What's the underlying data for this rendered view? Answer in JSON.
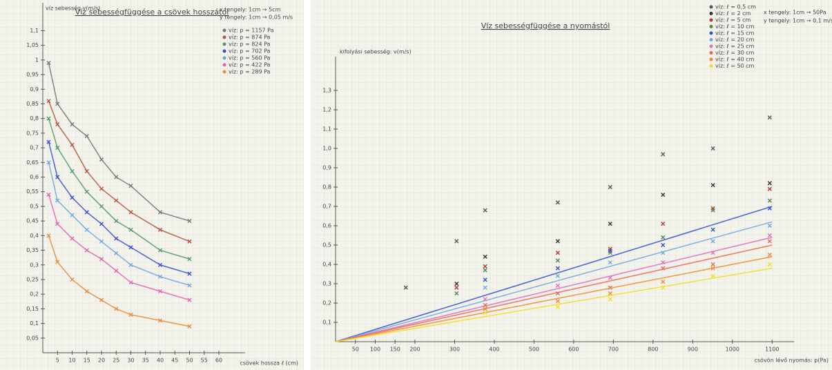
{
  "chart_data": [
    {
      "type": "line",
      "title": "Víz sebességfüggése a csövek hosszától",
      "x_label": "csövek hossza ℓ (cm)",
      "y_label": "víz sebesség v(m/s)",
      "annotations": [
        "x tengely: 1cm → 5cm",
        "y tengely: 1cm → 0,05 m/s"
      ],
      "xlim": [
        0,
        68
      ],
      "ylim": [
        0,
        1.2
      ],
      "xticks": [
        5,
        10,
        15,
        20,
        25,
        30,
        35,
        40,
        45,
        50,
        55,
        60
      ],
      "yticks": [
        {
          "value": 0.05,
          "label": "0,05"
        },
        {
          "value": 0.1,
          "label": "0,1"
        },
        {
          "value": 0.15,
          "label": "0,15"
        },
        {
          "value": 0.2,
          "label": "0,2"
        },
        {
          "value": 0.25,
          "label": "0,25"
        },
        {
          "value": 0.3,
          "label": "0,3"
        },
        {
          "value": 0.35,
          "label": "0,35"
        },
        {
          "value": 0.4,
          "label": "0,4"
        },
        {
          "value": 0.45,
          "label": "0,45"
        },
        {
          "value": 0.5,
          "label": "0,5"
        },
        {
          "value": 0.55,
          "label": "0,55"
        },
        {
          "value": 0.6,
          "label": "0,6"
        },
        {
          "value": 0.65,
          "label": "0,65"
        },
        {
          "value": 0.7,
          "label": "0,7"
        },
        {
          "value": 0.75,
          "label": "0,75"
        },
        {
          "value": 0.8,
          "label": "0,8"
        },
        {
          "value": 0.85,
          "label": "0,85"
        },
        {
          "value": 0.9,
          "label": "0,9"
        },
        {
          "value": 0.95,
          "label": "0,95"
        },
        {
          "value": 1,
          "label": "1"
        },
        {
          "value": 1.05,
          "label": "1,05"
        },
        {
          "value": 1.1,
          "label": "1,1"
        }
      ],
      "x": [
        2,
        5,
        10,
        15,
        20,
        25,
        30,
        40,
        50
      ],
      "series": [
        {
          "name": "víz: p = 1157 Pa",
          "color": "#777777",
          "values": [
            0.99,
            0.85,
            0.78,
            0.74,
            0.66,
            0.6,
            0.57,
            0.48,
            0.45
          ]
        },
        {
          "name": "víz: p = 874 Pa",
          "color": "#b5553e",
          "values": [
            0.86,
            0.78,
            0.71,
            0.62,
            0.56,
            0.52,
            0.48,
            0.42,
            0.38
          ]
        },
        {
          "name": "víz: p = 824 Pa",
          "color": "#4f9a6a",
          "values": [
            0.8,
            0.7,
            0.62,
            0.55,
            0.5,
            0.45,
            0.42,
            0.35,
            0.32
          ]
        },
        {
          "name": "víz: p = 702 Pa",
          "color": "#3a4fd0",
          "values": [
            0.72,
            0.6,
            0.53,
            0.48,
            0.44,
            0.39,
            0.36,
            0.3,
            0.27
          ]
        },
        {
          "name": "víz: p = 560 Pa",
          "color": "#6fa8dc",
          "values": [
            0.65,
            0.52,
            0.47,
            0.42,
            0.38,
            0.34,
            0.3,
            0.26,
            0.23
          ]
        },
        {
          "name": "víz: p = 422 Pa",
          "color": "#e065b0",
          "values": [
            0.54,
            0.44,
            0.39,
            0.35,
            0.32,
            0.28,
            0.24,
            0.21,
            0.18
          ]
        },
        {
          "name": "víz: p = 289 Pa",
          "color": "#e98a3a",
          "values": [
            0.4,
            0.31,
            0.25,
            0.21,
            0.18,
            0.15,
            0.13,
            0.11,
            0.09
          ]
        }
      ]
    },
    {
      "type": "scatter",
      "title": "Víz sebességfüggése a nyomástól",
      "x_label": "csövön lévő nyomás: p(Pa)",
      "y_label": "kifolyási sebesség: v(m/s)",
      "annotations": [
        "x tengely: 1cm → 50Pa",
        "y tengely: 1cm → 0,1 m/s"
      ],
      "xlim": [
        0,
        1150
      ],
      "ylim": [
        0,
        1.4
      ],
      "xticks": [
        50,
        100,
        150,
        200,
        300,
        400,
        500,
        600,
        700,
        800,
        900,
        1000,
        1100
      ],
      "yticks": [
        {
          "value": 0.1,
          "label": "0,1"
        },
        {
          "value": 0.2,
          "label": "0,2"
        },
        {
          "value": 0.3,
          "label": "0,3"
        },
        {
          "value": 0.4,
          "label": "0,4"
        },
        {
          "value": 0.5,
          "label": "0,5"
        },
        {
          "value": 0.6,
          "label": "0,6"
        },
        {
          "value": 0.7,
          "label": "0,7"
        },
        {
          "value": 0.8,
          "label": "0,8"
        },
        {
          "value": 0.9,
          "label": "0,9"
        },
        {
          "value": 1.0,
          "label": "1,0"
        },
        {
          "value": 1.1,
          "label": "1,1"
        },
        {
          "value": 1.2,
          "label": "1,2"
        },
        {
          "value": 1.3,
          "label": "1,3"
        }
      ],
      "x": [
        177,
        305,
        377,
        560,
        692,
        825,
        951,
        1094
      ],
      "series": [
        {
          "name": "víz: ℓ = 0,5 cm",
          "color": "#555555",
          "values": [
            0.28,
            0.52,
            0.68,
            0.72,
            0.8,
            0.97,
            1.0,
            1.16
          ]
        },
        {
          "name": "víz: ℓ = 2 cm",
          "color": "#333333",
          "values": [
            null,
            0.3,
            0.44,
            0.52,
            0.61,
            0.76,
            0.81,
            0.82
          ]
        },
        {
          "name": "víz: ℓ = 5 cm",
          "color": "#bb3333",
          "values": [
            null,
            0.28,
            0.39,
            0.46,
            0.48,
            0.61,
            0.69,
            0.79
          ]
        },
        {
          "name": "víz: ℓ = 10 cm",
          "color": "#4a8a4a",
          "values": [
            null,
            0.25,
            0.37,
            0.42,
            0.46,
            0.54,
            0.68,
            0.73
          ]
        },
        {
          "name": "víz: ℓ = 15 cm",
          "color": "#3050d0",
          "values": [
            null,
            null,
            0.32,
            0.38,
            0.47,
            0.5,
            0.58,
            0.69
          ],
          "fit": {
            "x": [
              0,
              1100
            ],
            "y": [
              0,
              0.7
            ]
          }
        },
        {
          "name": "víz: ℓ = 20 cm",
          "color": "#70a8e0",
          "values": [
            null,
            null,
            0.28,
            0.34,
            0.41,
            0.46,
            0.52,
            0.6
          ],
          "fit": {
            "x": [
              0,
              1100
            ],
            "y": [
              0,
              0.62
            ]
          }
        },
        {
          "name": "víz: ℓ = 25 cm",
          "color": "#e070c0",
          "values": [
            null,
            null,
            0.22,
            0.29,
            0.33,
            0.41,
            0.46,
            0.55
          ],
          "fit": {
            "x": [
              0,
              1100
            ],
            "y": [
              0,
              0.54
            ]
          }
        },
        {
          "name": "víz: ℓ = 30 cm",
          "color": "#ee6655",
          "values": [
            null,
            null,
            0.19,
            0.25,
            0.28,
            0.38,
            0.4,
            0.52
          ],
          "fit": {
            "x": [
              0,
              1100
            ],
            "y": [
              0,
              0.5
            ]
          }
        },
        {
          "name": "víz: ℓ = 40 cm",
          "color": "#f08a30",
          "values": [
            null,
            null,
            0.17,
            0.21,
            0.25,
            0.31,
            0.38,
            0.45
          ],
          "fit": {
            "x": [
              0,
              1100
            ],
            "y": [
              0,
              0.44
            ]
          }
        },
        {
          "name": "víz: ℓ = 50 cm",
          "color": "#f0e020",
          "values": [
            null,
            null,
            0.15,
            0.18,
            0.22,
            0.28,
            0.34,
            0.4
          ],
          "fit": {
            "x": [
              0,
              1100
            ],
            "y": [
              0,
              0.38
            ]
          }
        }
      ]
    }
  ]
}
